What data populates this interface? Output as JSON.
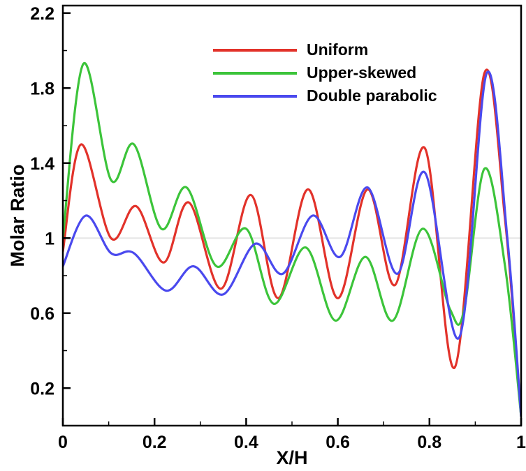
{
  "chart_data": {
    "type": "line",
    "title": "",
    "xlabel": "X/H",
    "ylabel": "Molar Ratio",
    "xlim": [
      0,
      1
    ],
    "ylim": [
      0,
      2.24
    ],
    "x_ticks": [
      0,
      0.2,
      0.4,
      0.6,
      0.8,
      1
    ],
    "x_tick_labels": [
      "0",
      "0.2",
      "0.4",
      "0.6",
      "0.8",
      "1"
    ],
    "x_minor_ticks": [
      0.1,
      0.3,
      0.5,
      0.7,
      0.9
    ],
    "y_ticks": [
      0.2,
      0.6,
      1,
      1.4,
      1.8,
      2.2
    ],
    "y_tick_labels": [
      "0.2",
      "0.6",
      "1",
      "1.4",
      "1.8",
      "2.2"
    ],
    "y_minor_ticks": [
      0.4,
      0.8,
      1.2,
      1.6,
      2.0
    ],
    "grid": false,
    "reference_line_y": 1,
    "reference_line_color": "#e6e6e6",
    "frame_color": "#000000",
    "legend_position": "top-center-inside",
    "series": [
      {
        "name": "Uniform",
        "color": "#e2322a",
        "points": [
          [
            0,
            0.93
          ],
          [
            0.04,
            1.5
          ],
          [
            0.105,
            1.0
          ],
          [
            0.16,
            1.17
          ],
          [
            0.22,
            0.87
          ],
          [
            0.275,
            1.19
          ],
          [
            0.345,
            0.73
          ],
          [
            0.41,
            1.23
          ],
          [
            0.47,
            0.68
          ],
          [
            0.535,
            1.26
          ],
          [
            0.6,
            0.68
          ],
          [
            0.665,
            1.26
          ],
          [
            0.725,
            0.75
          ],
          [
            0.79,
            1.48
          ],
          [
            0.855,
            0.31
          ],
          [
            0.92,
            1.88
          ],
          [
            0.965,
            1.1
          ],
          [
            1,
            0.05
          ]
        ]
      },
      {
        "name": "Upper-skewed",
        "color": "#3cc43a",
        "points": [
          [
            0,
            1.0
          ],
          [
            0.045,
            1.93
          ],
          [
            0.105,
            1.31
          ],
          [
            0.155,
            1.5
          ],
          [
            0.215,
            1.05
          ],
          [
            0.27,
            1.27
          ],
          [
            0.335,
            0.85
          ],
          [
            0.4,
            1.05
          ],
          [
            0.46,
            0.65
          ],
          [
            0.53,
            0.95
          ],
          [
            0.595,
            0.56
          ],
          [
            0.66,
            0.9
          ],
          [
            0.72,
            0.56
          ],
          [
            0.785,
            1.05
          ],
          [
            0.845,
            0.62
          ],
          [
            0.875,
            0.61
          ],
          [
            0.92,
            1.37
          ],
          [
            0.965,
            0.85
          ],
          [
            1,
            0.05
          ]
        ]
      },
      {
        "name": "Double parabolic",
        "color": "#4a49ee",
        "points": [
          [
            0,
            0.85
          ],
          [
            0.05,
            1.12
          ],
          [
            0.105,
            0.92
          ],
          [
            0.155,
            0.92
          ],
          [
            0.225,
            0.72
          ],
          [
            0.285,
            0.85
          ],
          [
            0.35,
            0.7
          ],
          [
            0.42,
            0.97
          ],
          [
            0.48,
            0.81
          ],
          [
            0.545,
            1.12
          ],
          [
            0.605,
            0.9
          ],
          [
            0.665,
            1.27
          ],
          [
            0.73,
            0.81
          ],
          [
            0.79,
            1.35
          ],
          [
            0.865,
            0.47
          ],
          [
            0.925,
            1.88
          ],
          [
            0.97,
            1.0
          ],
          [
            1,
            0.05
          ]
        ]
      }
    ]
  }
}
